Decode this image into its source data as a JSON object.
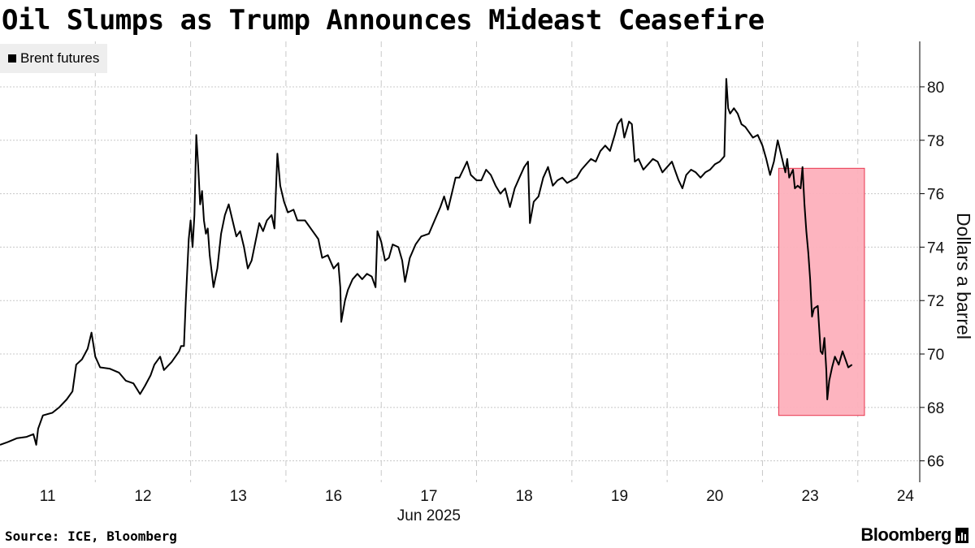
{
  "title": "Oil Slumps as Trump Announces Mideast Ceasefire",
  "legend_label": "Brent futures",
  "source": "Source: ICE, Bloomberg",
  "brand": "Bloomberg",
  "colors": {
    "line": "#000000",
    "highlight_fill": "#fdb0bc",
    "highlight_stroke": "#e8354e",
    "grid": "#c8c8c8"
  },
  "chart_data": {
    "type": "line",
    "title": "Oil Slumps as Trump Announces Mideast Ceasefire",
    "xlabel": "Jun 2025",
    "ylabel": "Dollars a barrel",
    "ylim": [
      65.2,
      81.7
    ],
    "yticks": [
      66,
      68,
      70,
      72,
      74,
      76,
      78,
      80
    ],
    "y_axis_side": "right",
    "x_range": [
      0,
      9.65
    ],
    "xticks": [
      {
        "label": "11",
        "x": 0.5
      },
      {
        "label": "12",
        "x": 1.5
      },
      {
        "label": "13",
        "x": 2.5
      },
      {
        "label": "16",
        "x": 3.5
      },
      {
        "label": "17",
        "x": 4.5
      },
      {
        "label": "18",
        "x": 5.5
      },
      {
        "label": "19",
        "x": 6.5
      },
      {
        "label": "20",
        "x": 7.5
      },
      {
        "label": "23",
        "x": 8.5
      },
      {
        "label": "24",
        "x": 9.5
      }
    ],
    "x_sublabel": "Jun 2025",
    "grid": true,
    "legend_position": "top-left",
    "highlight": {
      "x0": 8.17,
      "x1": 9.07,
      "y0": 67.7,
      "y1": 76.95
    },
    "series": [
      {
        "name": "Brent futures",
        "points": [
          [
            0.0,
            66.6
          ],
          [
            0.08,
            66.7
          ],
          [
            0.18,
            66.85
          ],
          [
            0.28,
            66.9
          ],
          [
            0.35,
            67.0
          ],
          [
            0.38,
            66.6
          ],
          [
            0.4,
            67.2
          ],
          [
            0.45,
            67.7
          ],
          [
            0.55,
            67.8
          ],
          [
            0.62,
            68.0
          ],
          [
            0.7,
            68.3
          ],
          [
            0.76,
            68.6
          ],
          [
            0.8,
            69.6
          ],
          [
            0.86,
            69.8
          ],
          [
            0.92,
            70.2
          ],
          [
            0.96,
            70.8
          ],
          [
            1.0,
            69.9
          ],
          [
            1.05,
            69.5
          ],
          [
            1.15,
            69.45
          ],
          [
            1.25,
            69.3
          ],
          [
            1.32,
            69.0
          ],
          [
            1.4,
            68.9
          ],
          [
            1.47,
            68.5
          ],
          [
            1.52,
            68.8
          ],
          [
            1.58,
            69.2
          ],
          [
            1.62,
            69.6
          ],
          [
            1.68,
            69.9
          ],
          [
            1.72,
            69.4
          ],
          [
            1.8,
            69.7
          ],
          [
            1.88,
            70.1
          ],
          [
            1.9,
            70.3
          ],
          [
            1.93,
            70.3
          ],
          [
            1.95,
            72.0
          ],
          [
            1.98,
            74.3
          ],
          [
            2.0,
            75.0
          ],
          [
            2.02,
            74.0
          ],
          [
            2.04,
            75.2
          ],
          [
            2.06,
            78.2
          ],
          [
            2.08,
            77.0
          ],
          [
            2.1,
            75.6
          ],
          [
            2.12,
            76.1
          ],
          [
            2.14,
            75.0
          ],
          [
            2.16,
            74.5
          ],
          [
            2.18,
            74.7
          ],
          [
            2.2,
            73.7
          ],
          [
            2.24,
            72.5
          ],
          [
            2.28,
            73.2
          ],
          [
            2.32,
            74.5
          ],
          [
            2.36,
            75.2
          ],
          [
            2.4,
            75.6
          ],
          [
            2.44,
            75.0
          ],
          [
            2.48,
            74.4
          ],
          [
            2.52,
            74.6
          ],
          [
            2.56,
            74.0
          ],
          [
            2.6,
            73.2
          ],
          [
            2.64,
            73.5
          ],
          [
            2.68,
            74.2
          ],
          [
            2.72,
            74.9
          ],
          [
            2.76,
            74.6
          ],
          [
            2.8,
            75.0
          ],
          [
            2.85,
            75.2
          ],
          [
            2.88,
            74.7
          ],
          [
            2.91,
            77.5
          ],
          [
            2.94,
            76.3
          ],
          [
            2.98,
            75.7
          ],
          [
            3.02,
            75.3
          ],
          [
            3.08,
            75.4
          ],
          [
            3.12,
            75.0
          ],
          [
            3.2,
            75.0
          ],
          [
            3.28,
            74.6
          ],
          [
            3.34,
            74.3
          ],
          [
            3.38,
            73.6
          ],
          [
            3.44,
            73.7
          ],
          [
            3.5,
            73.2
          ],
          [
            3.55,
            73.4
          ],
          [
            3.57,
            72.5
          ],
          [
            3.58,
            71.2
          ],
          [
            3.62,
            72.0
          ],
          [
            3.65,
            72.4
          ],
          [
            3.7,
            72.8
          ],
          [
            3.75,
            73.0
          ],
          [
            3.8,
            72.8
          ],
          [
            3.85,
            73.0
          ],
          [
            3.9,
            72.9
          ],
          [
            3.94,
            72.5
          ],
          [
            3.96,
            74.6
          ],
          [
            4.0,
            74.2
          ],
          [
            4.04,
            73.5
          ],
          [
            4.08,
            73.6
          ],
          [
            4.12,
            74.1
          ],
          [
            4.18,
            74.0
          ],
          [
            4.22,
            73.5
          ],
          [
            4.25,
            72.7
          ],
          [
            4.3,
            73.6
          ],
          [
            4.36,
            74.1
          ],
          [
            4.42,
            74.4
          ],
          [
            4.5,
            74.5
          ],
          [
            4.56,
            75.0
          ],
          [
            4.62,
            75.5
          ],
          [
            4.66,
            75.9
          ],
          [
            4.7,
            75.4
          ],
          [
            4.74,
            76.0
          ],
          [
            4.78,
            76.6
          ],
          [
            4.82,
            76.6
          ],
          [
            4.86,
            76.9
          ],
          [
            4.9,
            77.2
          ],
          [
            4.94,
            76.7
          ],
          [
            5.0,
            76.5
          ],
          [
            5.05,
            76.5
          ],
          [
            5.1,
            76.9
          ],
          [
            5.15,
            76.7
          ],
          [
            5.2,
            76.3
          ],
          [
            5.25,
            76.0
          ],
          [
            5.3,
            76.2
          ],
          [
            5.35,
            75.5
          ],
          [
            5.4,
            76.2
          ],
          [
            5.45,
            76.6
          ],
          [
            5.5,
            77.0
          ],
          [
            5.54,
            77.2
          ],
          [
            5.56,
            74.9
          ],
          [
            5.6,
            75.7
          ],
          [
            5.65,
            75.9
          ],
          [
            5.7,
            76.6
          ],
          [
            5.75,
            77.0
          ],
          [
            5.8,
            76.3
          ],
          [
            5.85,
            76.5
          ],
          [
            5.9,
            76.6
          ],
          [
            5.95,
            76.4
          ],
          [
            6.0,
            76.5
          ],
          [
            6.05,
            76.6
          ],
          [
            6.1,
            76.9
          ],
          [
            6.15,
            77.1
          ],
          [
            6.2,
            77.3
          ],
          [
            6.25,
            77.2
          ],
          [
            6.3,
            77.6
          ],
          [
            6.35,
            77.8
          ],
          [
            6.4,
            77.6
          ],
          [
            6.45,
            78.2
          ],
          [
            6.48,
            78.6
          ],
          [
            6.52,
            78.8
          ],
          [
            6.55,
            78.1
          ],
          [
            6.6,
            78.7
          ],
          [
            6.63,
            78.6
          ],
          [
            6.66,
            77.2
          ],
          [
            6.7,
            77.3
          ],
          [
            6.75,
            76.9
          ],
          [
            6.8,
            77.1
          ],
          [
            6.85,
            77.3
          ],
          [
            6.9,
            77.2
          ],
          [
            6.95,
            76.8
          ],
          [
            7.0,
            77.0
          ],
          [
            7.05,
            77.2
          ],
          [
            7.08,
            76.9
          ],
          [
            7.12,
            76.5
          ],
          [
            7.16,
            76.2
          ],
          [
            7.2,
            76.7
          ],
          [
            7.25,
            76.9
          ],
          [
            7.3,
            76.8
          ],
          [
            7.35,
            76.6
          ],
          [
            7.4,
            76.8
          ],
          [
            7.45,
            76.9
          ],
          [
            7.5,
            77.1
          ],
          [
            7.55,
            77.2
          ],
          [
            7.6,
            77.4
          ],
          [
            7.62,
            80.3
          ],
          [
            7.64,
            79.2
          ],
          [
            7.66,
            79.0
          ],
          [
            7.7,
            79.2
          ],
          [
            7.74,
            79.0
          ],
          [
            7.78,
            78.6
          ],
          [
            7.82,
            78.5
          ],
          [
            7.86,
            78.3
          ],
          [
            7.9,
            78.1
          ],
          [
            7.95,
            78.2
          ],
          [
            8.0,
            77.8
          ],
          [
            8.04,
            77.3
          ],
          [
            8.08,
            76.7
          ],
          [
            8.12,
            77.2
          ],
          [
            8.16,
            78.0
          ],
          [
            8.2,
            77.4
          ],
          [
            8.24,
            76.8
          ],
          [
            8.26,
            77.3
          ],
          [
            8.28,
            76.6
          ],
          [
            8.32,
            76.9
          ],
          [
            8.34,
            76.2
          ],
          [
            8.37,
            76.3
          ],
          [
            8.4,
            76.2
          ],
          [
            8.42,
            77.0
          ],
          [
            8.44,
            75.6
          ],
          [
            8.46,
            74.6
          ],
          [
            8.48,
            73.8
          ],
          [
            8.5,
            72.8
          ],
          [
            8.52,
            71.4
          ],
          [
            8.54,
            71.7
          ],
          [
            8.58,
            71.8
          ],
          [
            8.61,
            70.1
          ],
          [
            8.63,
            70.0
          ],
          [
            8.65,
            70.6
          ],
          [
            8.67,
            69.4
          ],
          [
            8.68,
            68.3
          ],
          [
            8.7,
            69.0
          ],
          [
            8.73,
            69.5
          ],
          [
            8.76,
            69.9
          ],
          [
            8.8,
            69.6
          ],
          [
            8.84,
            70.1
          ],
          [
            8.87,
            69.8
          ],
          [
            8.9,
            69.5
          ],
          [
            8.94,
            69.6
          ]
        ]
      }
    ]
  }
}
